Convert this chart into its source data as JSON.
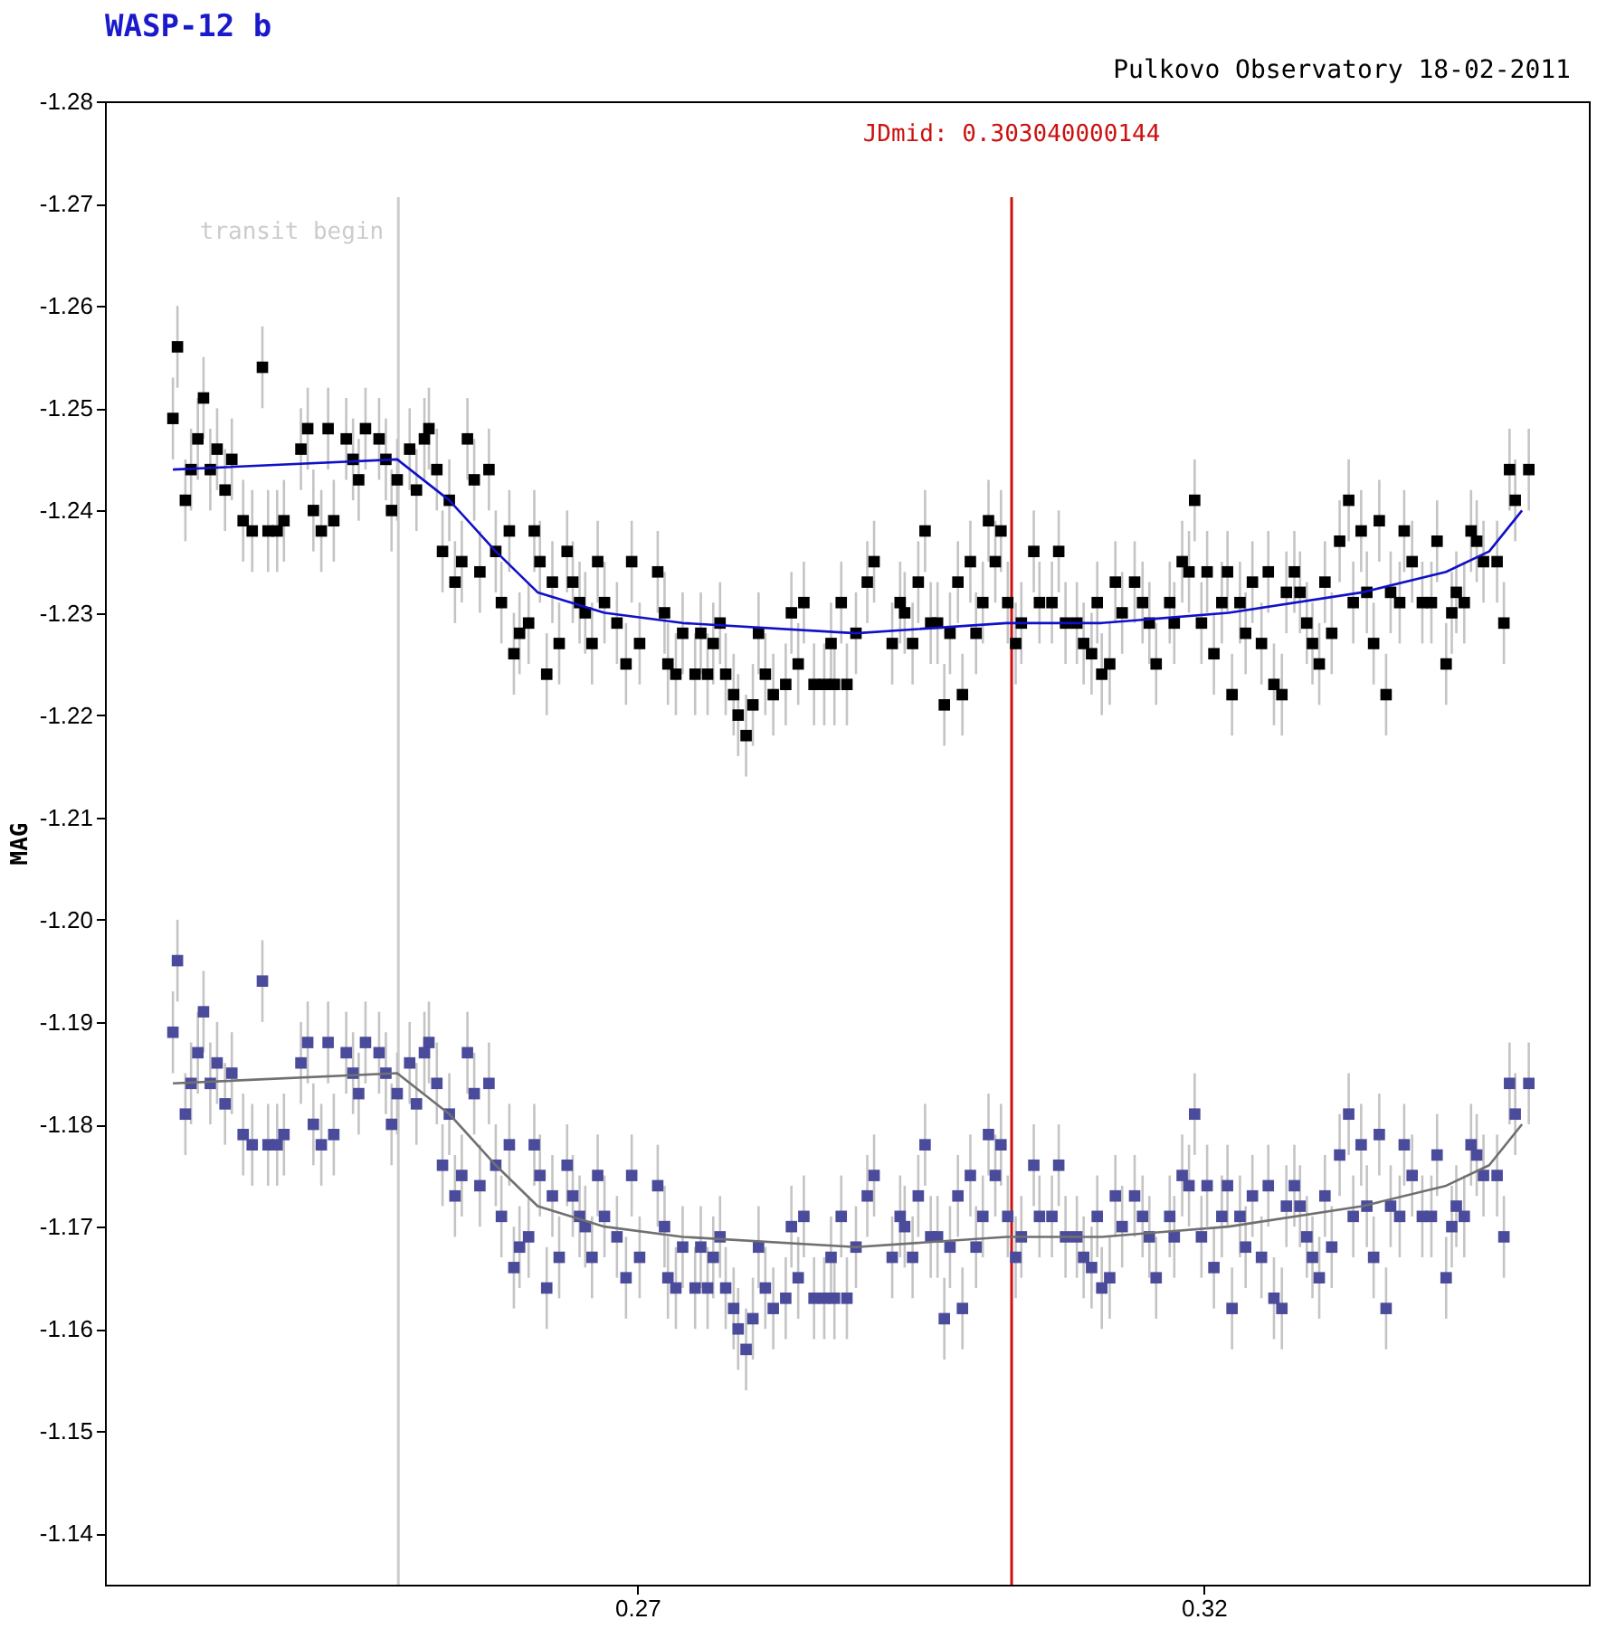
{
  "chart_data": {
    "type": "scatter",
    "title": "WASP-12 b",
    "subtitle": "Pulkovo Observatory 18-02-2011",
    "ylabel": "MAG",
    "xlim": [
      0.223,
      0.354
    ],
    "xticks": [
      0.27,
      0.32
    ],
    "ylim": [
      -1.135,
      -1.28
    ],
    "yticks": [
      -1.28,
      -1.27,
      -1.26,
      -1.25,
      -1.24,
      -1.23,
      -1.22,
      -1.21,
      {
        "value": -1.2,
        "label": "-1.20"
      },
      -1.19,
      -1.18,
      -1.17,
      -1.16,
      -1.15,
      -1.14
    ],
    "grid": false,
    "x": [
      0.229,
      0.2294,
      0.2301,
      0.2306,
      0.2312,
      0.2317,
      0.2323,
      0.2329,
      0.2336,
      0.2342,
      0.2352,
      0.236,
      0.2369,
      0.2374,
      0.2382,
      0.2388,
      0.2403,
      0.2409,
      0.2414,
      0.2421,
      0.2427,
      0.2432,
      0.2443,
      0.2449,
      0.2454,
      0.246,
      0.2472,
      0.2478,
      0.2483,
      0.2488,
      0.2499,
      0.2505,
      0.2512,
      0.2516,
      0.2523,
      0.2528,
      0.2534,
      0.2539,
      0.2545,
      0.255,
      0.2556,
      0.2561,
      0.2569,
      0.2575,
      0.258,
      0.2587,
      0.2591,
      0.2596,
      0.2604,
      0.2609,
      0.2614,
      0.262,
      0.2625,
      0.2631,
      0.2638,
      0.2643,
      0.2649,
      0.2654,
      0.266,
      0.2665,
      0.2671,
      0.2682,
      0.269,
      0.2695,
      0.2702,
      0.2718,
      0.2724,
      0.2727,
      0.2734,
      0.274,
      0.2751,
      0.2756,
      0.2762,
      0.2767,
      0.2773,
      0.2778,
      0.2785,
      0.2789,
      0.2796,
      0.2802,
      0.2807,
      0.2813,
      0.282,
      0.2831,
      0.2836,
      0.2842,
      0.2847,
      0.2856,
      0.2865,
      0.2871,
      0.2874,
      0.288,
      0.2885,
      0.2893,
      0.2903,
      0.2909,
      0.2925,
      0.2932,
      0.2936,
      0.2943,
      0.2948,
      0.2954,
      0.2959,
      0.2965,
      0.2971,
      0.2976,
      0.2983,
      0.2987,
      0.2994,
      0.2999,
      0.3005,
      0.301,
      0.3016,
      0.3021,
      0.3027,
      0.3034,
      0.3039,
      0.305,
      0.3055,
      0.3066,
      0.3072,
      0.3078,
      0.3088,
      0.3094,
      0.3101,
      0.3106,
      0.311,
      0.3117,
      0.3122,
      0.3128,
      0.3139,
      0.3146,
      0.3152,
      0.3158,
      0.317,
      0.3174,
      0.3181,
      0.3187,
      0.3192,
      0.3198,
      0.3203,
      0.3209,
      0.3216,
      0.3221,
      0.3225,
      0.3232,
      0.3237,
      0.3243,
      0.3251,
      0.3257,
      0.3262,
      0.3269,
      0.3273,
      0.328,
      0.3285,
      0.3291,
      0.3296,
      0.3302,
      0.3307,
      0.3313,
      0.332,
      0.3328,
      0.3332,
      0.3339,
      0.3344,
      0.335,
      0.3355,
      0.3361,
      0.3365,
      0.3373,
      0.3377,
      0.3384,
      0.3393,
      0.3401,
      0.3406,
      0.3414,
      0.3419,
      0.3423,
      0.343,
      0.3436,
      0.3441,
      0.3447,
      0.3459,
      0.3465,
      0.347,
      0.3475,
      0.3487
    ],
    "series": [
      {
        "marker": "square",
        "color": "#000000",
        "values": [
          -1.249,
          -1.256,
          -1.241,
          -1.244,
          -1.247,
          -1.251,
          -1.244,
          -1.246,
          -1.242,
          -1.245,
          -1.239,
          -1.238,
          -1.254,
          -1.238,
          -1.238,
          -1.239,
          -1.246,
          -1.248,
          -1.24,
          -1.238,
          -1.248,
          -1.239,
          -1.247,
          -1.245,
          -1.243,
          -1.248,
          -1.247,
          -1.245,
          -1.24,
          -1.243,
          -1.246,
          -1.242,
          -1.247,
          -1.248,
          -1.244,
          -1.236,
          -1.241,
          -1.233,
          -1.235,
          -1.247,
          -1.243,
          -1.234,
          -1.244,
          -1.236,
          -1.231,
          -1.238,
          -1.226,
          -1.228,
          -1.229,
          -1.238,
          -1.235,
          -1.224,
          -1.233,
          -1.227,
          -1.236,
          -1.233,
          -1.231,
          -1.23,
          -1.227,
          -1.235,
          -1.231,
          -1.229,
          -1.225,
          -1.235,
          -1.227,
          -1.234,
          -1.23,
          -1.225,
          -1.224,
          -1.228,
          -1.224,
          -1.228,
          -1.224,
          -1.227,
          -1.229,
          -1.224,
          -1.222,
          -1.22,
          -1.218,
          -1.221,
          -1.228,
          -1.224,
          -1.222,
          -1.223,
          -1.23,
          -1.225,
          -1.231,
          -1.223,
          -1.223,
          -1.227,
          -1.223,
          -1.231,
          -1.223,
          -1.228,
          -1.233,
          -1.235,
          -1.227,
          -1.231,
          -1.23,
          -1.227,
          -1.233,
          -1.238,
          -1.229,
          -1.229,
          -1.221,
          -1.228,
          -1.233,
          -1.222,
          -1.235,
          -1.228,
          -1.231,
          -1.239,
          -1.235,
          -1.238,
          -1.231,
          -1.227,
          -1.229,
          -1.236,
          -1.231,
          -1.231,
          -1.236,
          -1.229,
          -1.229,
          -1.227,
          -1.226,
          -1.231,
          -1.224,
          -1.225,
          -1.233,
          -1.23,
          -1.233,
          -1.231,
          -1.229,
          -1.225,
          -1.231,
          -1.229,
          -1.235,
          -1.234,
          -1.241,
          -1.229,
          -1.234,
          -1.226,
          -1.231,
          -1.234,
          -1.222,
          -1.231,
          -1.228,
          -1.233,
          -1.227,
          -1.234,
          -1.223,
          -1.222,
          -1.232,
          -1.234,
          -1.232,
          -1.229,
          -1.227,
          -1.225,
          -1.233,
          -1.228,
          -1.237,
          -1.241,
          -1.231,
          -1.238,
          -1.232,
          -1.227,
          -1.239,
          -1.222,
          -1.232,
          -1.231,
          -1.238,
          -1.235,
          -1.231,
          -1.231,
          -1.237,
          -1.225,
          -1.23,
          -1.232,
          -1.231,
          -1.238,
          -1.237,
          -1.235,
          -1.235,
          -1.229,
          -1.244,
          -1.241,
          -1.244
        ],
        "errors": [
          0.004,
          0.004,
          0.004,
          0.004,
          0.004,
          0.004,
          0.004,
          0.004,
          0.004,
          0.004,
          0.004,
          0.004,
          0.004,
          0.004,
          0.004,
          0.004,
          0.004,
          0.004,
          0.004,
          0.004,
          0.004,
          0.004,
          0.004,
          0.004,
          0.004,
          0.004,
          0.004,
          0.004,
          0.004,
          0.004,
          0.004,
          0.004,
          0.004,
          0.004,
          0.004,
          0.004,
          0.004,
          0.004,
          0.004,
          0.004,
          0.004,
          0.004,
          0.004,
          0.004,
          0.004,
          0.004,
          0.004,
          0.004,
          0.004,
          0.004,
          0.004,
          0.004,
          0.004,
          0.004,
          0.004,
          0.004,
          0.004,
          0.004,
          0.004,
          0.004,
          0.004,
          0.004,
          0.004,
          0.004,
          0.004,
          0.004,
          0.004,
          0.004,
          0.004,
          0.004,
          0.004,
          0.004,
          0.004,
          0.004,
          0.004,
          0.004,
          0.004,
          0.004,
          0.004,
          0.004,
          0.004,
          0.004,
          0.004,
          0.004,
          0.004,
          0.004,
          0.004,
          0.004,
          0.004,
          0.004,
          0.004,
          0.004,
          0.004,
          0.004,
          0.004,
          0.004,
          0.004,
          0.004,
          0.004,
          0.004,
          0.004,
          0.004,
          0.004,
          0.004,
          0.004,
          0.004,
          0.004,
          0.004,
          0.004,
          0.004,
          0.004,
          0.004,
          0.004,
          0.004,
          0.004,
          0.004,
          0.004,
          0.004,
          0.004,
          0.004,
          0.004,
          0.004,
          0.004,
          0.004,
          0.004,
          0.004,
          0.004,
          0.004,
          0.004,
          0.004,
          0.004,
          0.004,
          0.004,
          0.004,
          0.004,
          0.004,
          0.004,
          0.004,
          0.004,
          0.004,
          0.004,
          0.004,
          0.004,
          0.004,
          0.004,
          0.004,
          0.004,
          0.004,
          0.004,
          0.004,
          0.004,
          0.004,
          0.004,
          0.004,
          0.004,
          0.004,
          0.004,
          0.004,
          0.004,
          0.004,
          0.004,
          0.004,
          0.004,
          0.004,
          0.004,
          0.004,
          0.004,
          0.004,
          0.004,
          0.004,
          0.004,
          0.004,
          0.004,
          0.004,
          0.004,
          0.004,
          0.004,
          0.004,
          0.004,
          0.004,
          0.004,
          0.004,
          0.004,
          0.004,
          0.004,
          0.004,
          0.004
        ]
      },
      {
        "type": "line",
        "color": "#1010c8",
        "x": [
          0.229,
          0.2488,
          0.2534,
          0.2575,
          0.2612,
          0.2671,
          0.274,
          0.2893,
          0.3026,
          0.311,
          0.3222,
          0.334,
          0.3414,
          0.3452,
          0.3481
        ],
        "values": [
          -1.244,
          -1.245,
          -1.241,
          -1.236,
          -1.232,
          -1.23,
          -1.229,
          -1.228,
          -1.229,
          -1.229,
          -1.23,
          -1.232,
          -1.234,
          -1.236,
          -1.24
        ]
      },
      {
        "marker": "square",
        "color": "#4b4b9b",
        "values": [
          -1.189,
          -1.196,
          -1.181,
          -1.184,
          -1.187,
          -1.191,
          -1.184,
          -1.186,
          -1.182,
          -1.185,
          -1.179,
          -1.178,
          -1.194,
          -1.178,
          -1.178,
          -1.179,
          -1.186,
          -1.188,
          -1.18,
          -1.178,
          -1.188,
          -1.179,
          -1.187,
          -1.185,
          -1.183,
          -1.188,
          -1.187,
          -1.185,
          -1.18,
          -1.183,
          -1.186,
          -1.182,
          -1.187,
          -1.188,
          -1.184,
          -1.176,
          -1.181,
          -1.173,
          -1.175,
          -1.187,
          -1.183,
          -1.174,
          -1.184,
          -1.176,
          -1.171,
          -1.178,
          -1.166,
          -1.168,
          -1.169,
          -1.178,
          -1.175,
          -1.164,
          -1.173,
          -1.167,
          -1.176,
          -1.173,
          -1.171,
          -1.17,
          -1.167,
          -1.175,
          -1.171,
          -1.169,
          -1.165,
          -1.175,
          -1.167,
          -1.174,
          -1.17,
          -1.165,
          -1.164,
          -1.168,
          -1.164,
          -1.168,
          -1.164,
          -1.167,
          -1.169,
          -1.164,
          -1.162,
          -1.16,
          -1.158,
          -1.161,
          -1.168,
          -1.164,
          -1.162,
          -1.163,
          -1.17,
          -1.165,
          -1.171,
          -1.163,
          -1.163,
          -1.167,
          -1.163,
          -1.171,
          -1.163,
          -1.168,
          -1.173,
          -1.175,
          -1.167,
          -1.171,
          -1.17,
          -1.167,
          -1.173,
          -1.178,
          -1.169,
          -1.169,
          -1.161,
          -1.168,
          -1.173,
          -1.162,
          -1.175,
          -1.168,
          -1.171,
          -1.179,
          -1.175,
          -1.178,
          -1.171,
          -1.167,
          -1.169,
          -1.176,
          -1.171,
          -1.171,
          -1.176,
          -1.169,
          -1.169,
          -1.167,
          -1.166,
          -1.171,
          -1.164,
          -1.165,
          -1.173,
          -1.17,
          -1.173,
          -1.171,
          -1.169,
          -1.165,
          -1.171,
          -1.169,
          -1.175,
          -1.174,
          -1.181,
          -1.169,
          -1.174,
          -1.166,
          -1.171,
          -1.174,
          -1.162,
          -1.171,
          -1.168,
          -1.173,
          -1.167,
          -1.174,
          -1.163,
          -1.162,
          -1.172,
          -1.174,
          -1.172,
          -1.169,
          -1.167,
          -1.165,
          -1.173,
          -1.168,
          -1.177,
          -1.181,
          -1.171,
          -1.178,
          -1.172,
          -1.167,
          -1.179,
          -1.162,
          -1.172,
          -1.171,
          -1.178,
          -1.175,
          -1.171,
          -1.171,
          -1.177,
          -1.165,
          -1.17,
          -1.172,
          -1.171,
          -1.178,
          -1.177,
          -1.175,
          -1.175,
          -1.169,
          -1.184,
          -1.181,
          -1.184
        ],
        "errors": [
          0.004,
          0.004,
          0.004,
          0.004,
          0.004,
          0.004,
          0.004,
          0.004,
          0.004,
          0.004,
          0.004,
          0.004,
          0.004,
          0.004,
          0.004,
          0.004,
          0.004,
          0.004,
          0.004,
          0.004,
          0.004,
          0.004,
          0.004,
          0.004,
          0.004,
          0.004,
          0.004,
          0.004,
          0.004,
          0.004,
          0.004,
          0.004,
          0.004,
          0.004,
          0.004,
          0.004,
          0.004,
          0.004,
          0.004,
          0.004,
          0.004,
          0.004,
          0.004,
          0.004,
          0.004,
          0.004,
          0.004,
          0.004,
          0.004,
          0.004,
          0.004,
          0.004,
          0.004,
          0.004,
          0.004,
          0.004,
          0.004,
          0.004,
          0.004,
          0.004,
          0.004,
          0.004,
          0.004,
          0.004,
          0.004,
          0.004,
          0.004,
          0.004,
          0.004,
          0.004,
          0.004,
          0.004,
          0.004,
          0.004,
          0.004,
          0.004,
          0.004,
          0.004,
          0.004,
          0.004,
          0.004,
          0.004,
          0.004,
          0.004,
          0.004,
          0.004,
          0.004,
          0.004,
          0.004,
          0.004,
          0.004,
          0.004,
          0.004,
          0.004,
          0.004,
          0.004,
          0.004,
          0.004,
          0.004,
          0.004,
          0.004,
          0.004,
          0.004,
          0.004,
          0.004,
          0.004,
          0.004,
          0.004,
          0.004,
          0.004,
          0.004,
          0.004,
          0.004,
          0.004,
          0.004,
          0.004,
          0.004,
          0.004,
          0.004,
          0.004,
          0.004,
          0.004,
          0.004,
          0.004,
          0.004,
          0.004,
          0.004,
          0.004,
          0.004,
          0.004,
          0.004,
          0.004,
          0.004,
          0.004,
          0.004,
          0.004,
          0.004,
          0.004,
          0.004,
          0.004,
          0.004,
          0.004,
          0.004,
          0.004,
          0.004,
          0.004,
          0.004,
          0.004,
          0.004,
          0.004,
          0.004,
          0.004,
          0.004,
          0.004,
          0.004,
          0.004,
          0.004,
          0.004,
          0.004,
          0.004,
          0.004,
          0.004,
          0.004,
          0.004,
          0.004,
          0.004,
          0.004,
          0.004,
          0.004,
          0.004,
          0.004,
          0.004,
          0.004,
          0.004,
          0.004,
          0.004,
          0.004,
          0.004,
          0.004,
          0.004,
          0.004,
          0.004,
          0.004,
          0.004,
          0.004,
          0.004,
          0.004
        ]
      },
      {
        "type": "line",
        "color": "#707070",
        "x": [
          0.229,
          0.2488,
          0.2534,
          0.2575,
          0.2612,
          0.2671,
          0.274,
          0.2893,
          0.3026,
          0.311,
          0.3222,
          0.334,
          0.3414,
          0.3452,
          0.3481
        ],
        "values": [
          -1.184,
          -1.185,
          -1.181,
          -1.176,
          -1.172,
          -1.17,
          -1.169,
          -1.168,
          -1.169,
          -1.169,
          -1.17,
          -1.172,
          -1.174,
          -1.176,
          -1.18
        ]
      }
    ],
    "ref_lines": [
      {
        "axis": "x",
        "value": 0.2489,
        "label": "transit begin",
        "color": "#cccccc"
      },
      {
        "axis": "x",
        "value": 0.303040000144,
        "label": "JDmid: 0.303040000144",
        "color": "#cc1111"
      }
    ]
  }
}
